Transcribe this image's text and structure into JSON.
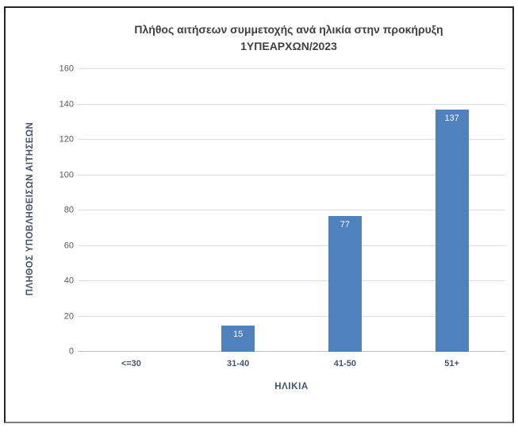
{
  "window": {
    "background": "#ffffff",
    "frame_border_color": "#262626"
  },
  "chart_data": {
    "type": "bar",
    "title": "Πλήθος αιτήσεων συμμετοχής ανά ηλικία στην προκήρυξη 1ΥΠΕΑΡΧΩΝ/2023",
    "title_lines": [
      "Πλήθος αιτήσεων συμμετοχής ανά ηλικία στην προκήρυξη",
      "1ΥΠΕΑΡΧΩΝ/2023"
    ],
    "categories": [
      "<=30",
      "31-40",
      "41-50",
      "51+"
    ],
    "values": [
      0,
      15,
      77,
      137
    ],
    "data_labels": [
      "",
      "15",
      "77",
      "137"
    ],
    "xlabel": "ΗΛΙΚΙΑ",
    "ylabel": "ΠΛΗΘΟΣ ΥΠΟΒΛΗΘΕΙΣΩΝ ΑΙΤΗΣΕΩΝ",
    "ylim": [
      0,
      160
    ],
    "yticks": [
      0,
      20,
      40,
      60,
      80,
      100,
      120,
      140,
      160
    ],
    "grid": true,
    "legend": "none",
    "colors": {
      "bar": "#4f81bd",
      "bar_label": "#ffffff",
      "gridline": "#dcdcdc",
      "axis_line": "#bfbfbf",
      "title": "#3f3f3f",
      "y_tick_label": "#595959",
      "category_label": "#44546a"
    }
  }
}
